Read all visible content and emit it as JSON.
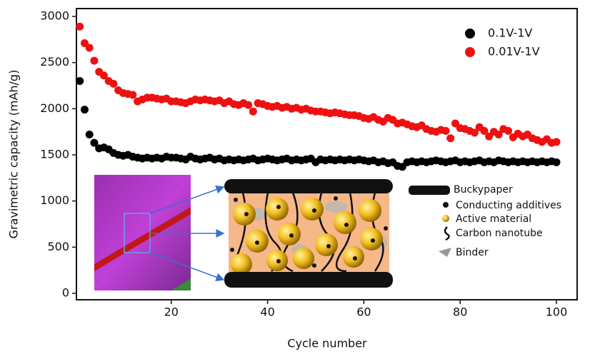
{
  "chart_data": {
    "type": "scatter",
    "xlabel": "Cycle number",
    "ylabel": "Gravimetric capacity (mAh/g)",
    "x": [
      1,
      2,
      3,
      4,
      5,
      6,
      7,
      8,
      9,
      10,
      11,
      12,
      13,
      14,
      15,
      16,
      17,
      18,
      19,
      20,
      21,
      22,
      23,
      24,
      25,
      26,
      27,
      28,
      29,
      30,
      31,
      32,
      33,
      34,
      35,
      36,
      37,
      38,
      39,
      40,
      41,
      42,
      43,
      44,
      45,
      46,
      47,
      48,
      49,
      50,
      51,
      52,
      53,
      54,
      55,
      56,
      57,
      58,
      59,
      60,
      61,
      62,
      63,
      64,
      65,
      66,
      67,
      68,
      69,
      70,
      71,
      72,
      73,
      74,
      75,
      76,
      77,
      78,
      79,
      80,
      81,
      82,
      83,
      84,
      85,
      86,
      87,
      88,
      89,
      90,
      91,
      92,
      93,
      94,
      95,
      96,
      97,
      98,
      99,
      100
    ],
    "series": [
      {
        "name": "0.1V-1V",
        "color": "#000000",
        "values": [
          2300,
          1990,
          1720,
          1630,
          1570,
          1580,
          1560,
          1520,
          1500,
          1490,
          1500,
          1480,
          1470,
          1460,
          1470,
          1460,
          1470,
          1460,
          1480,
          1470,
          1470,
          1460,
          1450,
          1480,
          1460,
          1450,
          1460,
          1470,
          1450,
          1460,
          1440,
          1450,
          1440,
          1450,
          1440,
          1450,
          1460,
          1440,
          1450,
          1460,
          1450,
          1440,
          1450,
          1460,
          1440,
          1450,
          1440,
          1450,
          1460,
          1420,
          1450,
          1440,
          1450,
          1440,
          1450,
          1440,
          1450,
          1440,
          1450,
          1440,
          1430,
          1440,
          1420,
          1430,
          1410,
          1420,
          1380,
          1370,
          1420,
          1430,
          1420,
          1430,
          1420,
          1430,
          1440,
          1430,
          1420,
          1430,
          1440,
          1420,
          1430,
          1420,
          1430,
          1440,
          1420,
          1430,
          1420,
          1440,
          1430,
          1420,
          1430,
          1420,
          1430,
          1420,
          1430,
          1420,
          1430,
          1420,
          1430,
          1420
        ]
      },
      {
        "name": "0.01V-1V",
        "color": "#ee1111",
        "values": [
          2890,
          2710,
          2660,
          2520,
          2400,
          2360,
          2300,
          2270,
          2200,
          2170,
          2160,
          2150,
          2080,
          2100,
          2120,
          2120,
          2110,
          2100,
          2110,
          2080,
          2080,
          2070,
          2060,
          2080,
          2100,
          2090,
          2100,
          2090,
          2080,
          2090,
          2060,
          2080,
          2050,
          2040,
          2060,
          2040,
          1970,
          2060,
          2050,
          2030,
          2020,
          2030,
          2010,
          2020,
          2000,
          2010,
          1990,
          2000,
          1980,
          1970,
          1970,
          1960,
          1950,
          1960,
          1950,
          1940,
          1930,
          1930,
          1920,
          1900,
          1890,
          1910,
          1880,
          1860,
          1900,
          1880,
          1840,
          1850,
          1830,
          1810,
          1800,
          1820,
          1780,
          1760,
          1750,
          1770,
          1760,
          1680,
          1840,
          1790,
          1780,
          1760,
          1740,
          1800,
          1760,
          1700,
          1750,
          1720,
          1780,
          1760,
          1690,
          1730,
          1700,
          1720,
          1680,
          1660,
          1640,
          1670,
          1630,
          1640
        ]
      }
    ],
    "xlim": [
      0.3,
      104.3
    ],
    "ylim": [
      -70,
      3085
    ],
    "xticks": [
      20,
      40,
      60,
      80,
      100
    ],
    "yticks": [
      0,
      500,
      1000,
      1500,
      2000,
      2500,
      3000
    ],
    "legend": "upper right",
    "inset_labels": [
      "Buckypaper",
      "Conducting additives",
      "Active material",
      "Carbon nanotube",
      "Binder"
    ]
  }
}
